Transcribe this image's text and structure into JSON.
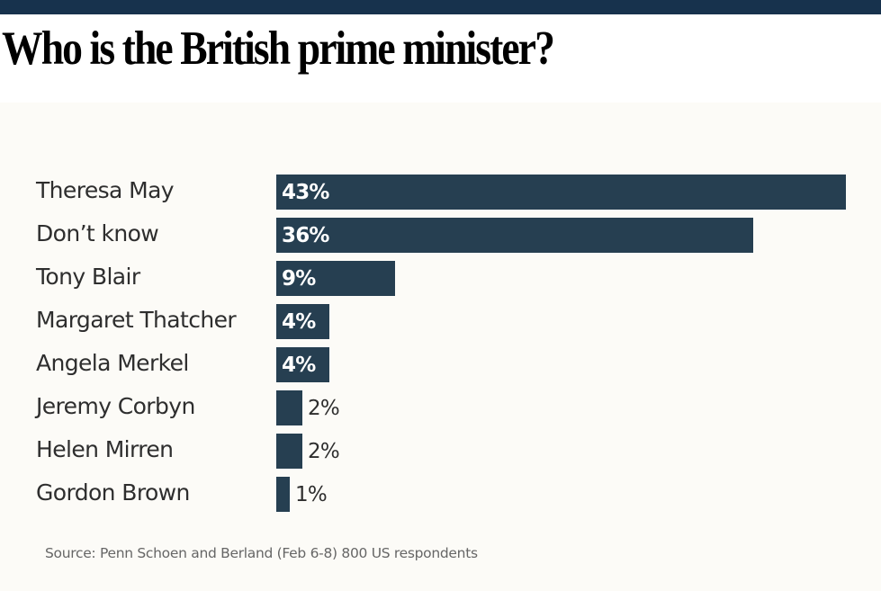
{
  "chart_data": {
    "type": "bar",
    "orientation": "horizontal",
    "title": "Who is the British prime minister?",
    "categories": [
      "Theresa May",
      "Don’t know",
      "Tony Blair",
      "Margaret Thatcher",
      "Angela Merkel",
      "Jeremy Corbyn",
      "Helen Mirren",
      "Gordon Brown"
    ],
    "values": [
      43,
      36,
      9,
      4,
      4,
      2,
      2,
      1
    ],
    "value_labels": [
      "43%",
      "36%",
      "9%",
      "4%",
      "4%",
      "2%",
      "2%",
      "1%"
    ],
    "xlabel": "",
    "ylabel": "",
    "unit": "%",
    "xlim": [
      0,
      43
    ],
    "grid": false,
    "legend": "none",
    "bar_color": "#263f51",
    "source": "Source: Penn Schoen and Berland (Feb 6-8) 800 US respondents"
  }
}
